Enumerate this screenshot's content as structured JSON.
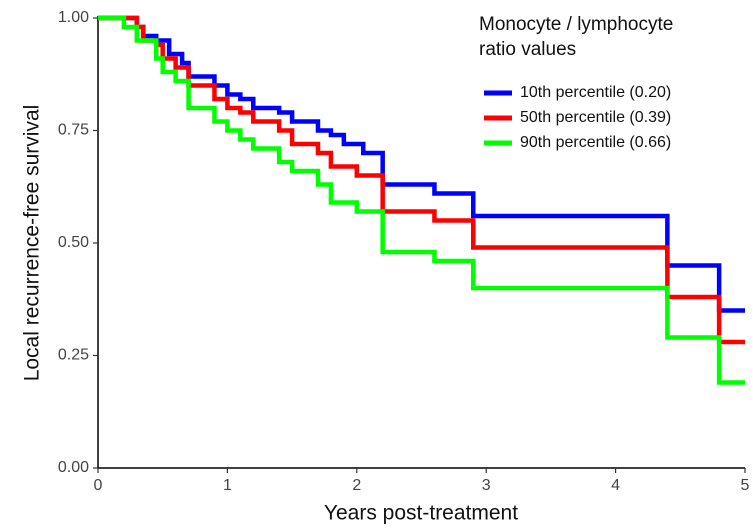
{
  "chart_data": {
    "type": "step",
    "x_label": "Years post-treatment",
    "y_label": "Local recurrence-free survival",
    "legend_title": [
      "Monocyte / lymphocyte",
      "ratio values"
    ],
    "legend_position": "top-right",
    "grid": false,
    "xlim": [
      0,
      5
    ],
    "xticks": [
      0,
      1,
      2,
      3,
      4,
      5
    ],
    "ylim": [
      0,
      1
    ],
    "yticks": [
      {
        "value": 0,
        "label": "0.00"
      },
      {
        "value": 0.25,
        "label": "0.25"
      },
      {
        "value": 0.5,
        "label": "0.50"
      },
      {
        "value": 0.75,
        "label": "0.75"
      },
      {
        "value": 1,
        "label": "1.00"
      }
    ],
    "series": [
      {
        "name": "10th percentile (0.20)",
        "color": "#0000ff",
        "x": [
          0,
          0.2,
          0.3,
          0.35,
          0.45,
          0.55,
          0.65,
          0.7,
          0.9,
          1.0,
          1.1,
          1.2,
          1.4,
          1.5,
          1.7,
          1.8,
          1.9,
          2.05,
          2.2,
          2.6,
          2.9,
          4.4,
          4.8,
          5.0
        ],
        "values": [
          1.0,
          1.0,
          0.98,
          0.96,
          0.95,
          0.92,
          0.9,
          0.87,
          0.85,
          0.83,
          0.82,
          0.8,
          0.79,
          0.77,
          0.75,
          0.74,
          0.72,
          0.7,
          0.63,
          0.61,
          0.56,
          0.45,
          0.35,
          0.35
        ]
      },
      {
        "name": "50th percentile (0.39)",
        "color": "#ff0000",
        "x": [
          0,
          0.2,
          0.3,
          0.35,
          0.45,
          0.5,
          0.6,
          0.7,
          0.9,
          1.0,
          1.1,
          1.2,
          1.4,
          1.5,
          1.7,
          1.8,
          2.0,
          2.2,
          2.6,
          2.9,
          4.4,
          4.8,
          5.0
        ],
        "values": [
          1.0,
          1.0,
          0.98,
          0.95,
          0.94,
          0.91,
          0.89,
          0.85,
          0.82,
          0.8,
          0.79,
          0.77,
          0.75,
          0.72,
          0.7,
          0.67,
          0.65,
          0.57,
          0.55,
          0.49,
          0.38,
          0.28,
          0.28
        ]
      },
      {
        "name": "90th percentile (0.66)",
        "color": "#00ff00",
        "x": [
          0,
          0.2,
          0.3,
          0.45,
          0.5,
          0.6,
          0.7,
          0.9,
          1.0,
          1.1,
          1.2,
          1.4,
          1.5,
          1.7,
          1.8,
          2.0,
          2.2,
          2.6,
          2.9,
          4.4,
          4.8,
          5.0
        ],
        "values": [
          1.0,
          0.98,
          0.95,
          0.91,
          0.88,
          0.86,
          0.8,
          0.77,
          0.75,
          0.73,
          0.71,
          0.68,
          0.66,
          0.63,
          0.59,
          0.57,
          0.48,
          0.46,
          0.4,
          0.29,
          0.19,
          0.19
        ]
      }
    ]
  }
}
